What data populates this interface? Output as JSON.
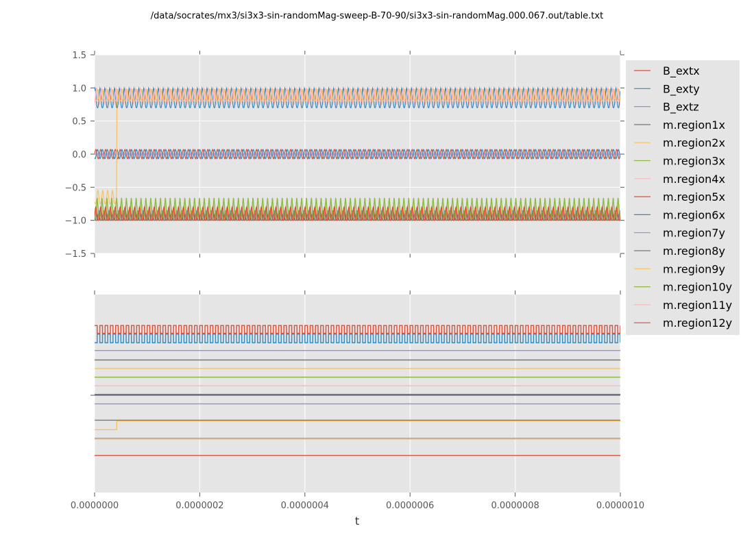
{
  "chart_data": [
    {
      "type": "line",
      "title": "/data/socrates/mx3/si3x3-sin-randomMag-sweep-B-70-90/si3x3-sin-randomMag.000.067.out/table.txt",
      "xlabel": "",
      "ylabel": "",
      "xlim": [
        0,
        1e-06
      ],
      "ylim": [
        -1.5,
        1.5
      ],
      "yticks": [
        "1.5",
        "1.0",
        "0.5",
        "0.0",
        "−0.5",
        "−1.0",
        "−1.5"
      ],
      "ytick_values": [
        1.5,
        1.0,
        0.5,
        0.0,
        -0.5,
        -1.0,
        -1.5
      ],
      "grid": true,
      "oscillation_cycles": 108,
      "series": [
        {
          "name": "B_extx",
          "color": "#E24A33",
          "min": -0.07,
          "max": 0.07
        },
        {
          "name": "B_exty",
          "color": "#348ABD",
          "min": -0.07,
          "max": 0.07
        },
        {
          "name": "B_extz",
          "color": "#988ED5",
          "min": 0.0,
          "max": 0.0
        },
        {
          "name": "m.region1x",
          "color": "#777777",
          "min": -1.0,
          "max": -0.85
        },
        {
          "name": "m.region2x",
          "color": "#FBC15E",
          "min": -0.75,
          "max": -0.55,
          "switch_t": 4.2e-08,
          "after_min": 0.8,
          "after_max": 0.98
        },
        {
          "name": "m.region3x",
          "color": "#8EBA42",
          "min": -1.0,
          "max": -0.65
        },
        {
          "name": "m.region4x",
          "color": "#FFB5B8",
          "min": 0.75,
          "max": 1.0
        },
        {
          "name": "m.region5x",
          "color": "#E24A33",
          "min": -1.0,
          "max": -0.8
        },
        {
          "name": "m.region6x",
          "color": "#348ABD",
          "min": 0.7,
          "max": 1.0
        },
        {
          "name": "m.region7y",
          "color": "#988ED5",
          "min": -0.95,
          "max": -0.85
        },
        {
          "name": "m.region8y",
          "color": "#777777",
          "min": -1.0,
          "max": -0.9
        },
        {
          "name": "m.region9y",
          "color": "#FBC15E",
          "min": 0.8,
          "max": 0.98
        },
        {
          "name": "m.region10y",
          "color": "#8EBA42",
          "min": -0.95,
          "max": -0.7
        },
        {
          "name": "m.region11y",
          "color": "#FFB5B8",
          "min": 0.8,
          "max": 1.0
        },
        {
          "name": "m.region12y",
          "color": "#E24A33",
          "min": -1.0,
          "max": -0.8
        }
      ]
    },
    {
      "type": "line",
      "xlabel": "t",
      "xlim": [
        0,
        1e-06
      ],
      "ylim": [
        0,
        23
      ],
      "xticks": [
        "0.0000000",
        "0.0000002",
        "0.0000004",
        "0.0000006",
        "0.0000008",
        "0.0000010"
      ],
      "xtick_values": [
        0,
        2e-07,
        4e-07,
        6e-07,
        8e-07,
        1e-06
      ],
      "grid": true,
      "square_cycles": 100,
      "series": [
        {
          "name": "B_extx",
          "low": 18.5,
          "high": 19.4
        },
        {
          "name": "B_exty",
          "low": 17.4,
          "high": 18.4
        },
        {
          "name": "B_extz",
          "level": 16.5
        },
        {
          "name": "m.region1x",
          "level": 15.4
        },
        {
          "name": "m.region2x",
          "level": 14.4
        },
        {
          "name": "m.region3x",
          "level": 13.4
        },
        {
          "name": "m.region4x",
          "level": 12.4
        },
        {
          "name": "m.region5x",
          "level": 11.4
        },
        {
          "name": "m.region6x",
          "level": 11.3
        },
        {
          "name": "m.region7y",
          "level": 10.3
        },
        {
          "name": "m.region8y",
          "level": 8.4
        },
        {
          "name": "m.region9y",
          "level": 7.3,
          "switch_t": 4.2e-08,
          "after_level": 8.3
        },
        {
          "name": "m.region10y",
          "level": 6.3
        },
        {
          "name": "m.region11y",
          "level": 6.2
        },
        {
          "name": "m.region12y",
          "level": 4.3
        }
      ]
    }
  ],
  "legend": {
    "placement": "right"
  }
}
